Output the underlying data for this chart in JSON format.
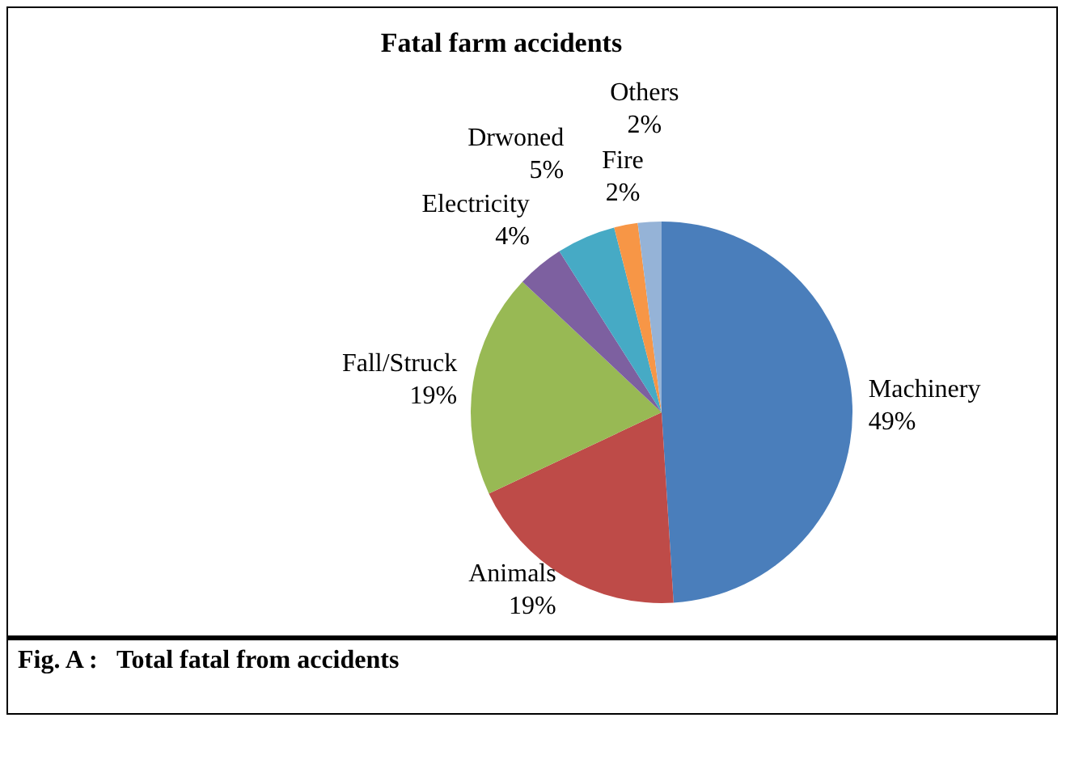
{
  "chart_data": {
    "type": "pie",
    "title": "Fatal farm accidents",
    "categories": [
      "Machinery",
      "Animals",
      "Fall/Struck",
      "Electricity",
      "Drwoned",
      "Fire",
      "Others"
    ],
    "values": [
      49,
      19,
      19,
      4,
      5,
      2,
      2
    ],
    "value_labels": [
      "49%",
      "19%",
      "19%",
      "4%",
      "5%",
      "2%",
      "2%"
    ],
    "colors": [
      "#4a7ebb",
      "#be4b48",
      "#98b954",
      "#7d60a0",
      "#46aac5",
      "#f79646",
      "#95b3d7"
    ],
    "legend": false,
    "annotations": [
      "Fig. A :   Total fatal from accidents"
    ]
  }
}
